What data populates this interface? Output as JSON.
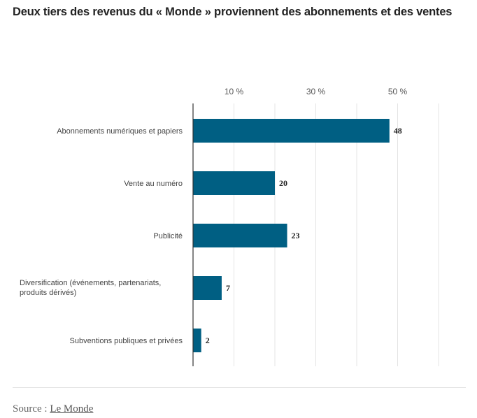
{
  "title": "Deux tiers des revenus du « Monde » proviennent des abonnements et des ventes",
  "source": {
    "prefix": "Source : ",
    "link_label": "Le Monde"
  },
  "colors": {
    "bar": "#005f83",
    "grid": "#e4e4e4",
    "axis": "#333333"
  },
  "chart_data": {
    "type": "bar",
    "orientation": "horizontal",
    "title": "Deux tiers des revenus du « Monde » proviennent des abonnements et des ventes",
    "categories": [
      [
        "Abonnements numériques et papiers"
      ],
      [
        "Vente au numéro"
      ],
      [
        "Publicité"
      ],
      [
        "Diversification (événements, partenariats,",
        "produits dérivés)"
      ],
      [
        "Subventions publiques et privées"
      ]
    ],
    "values": [
      48,
      20,
      23,
      7,
      2
    ],
    "value_labels": [
      "48",
      "20",
      "23",
      "7",
      "2"
    ],
    "xlim": [
      0,
      60
    ],
    "grid_values": [
      10,
      20,
      30,
      40,
      50,
      60
    ],
    "tick_values": [
      10,
      30,
      50
    ],
    "tick_labels": [
      "10 %",
      "30 %",
      "50 %"
    ],
    "grid": true,
    "axis_position": "top"
  }
}
